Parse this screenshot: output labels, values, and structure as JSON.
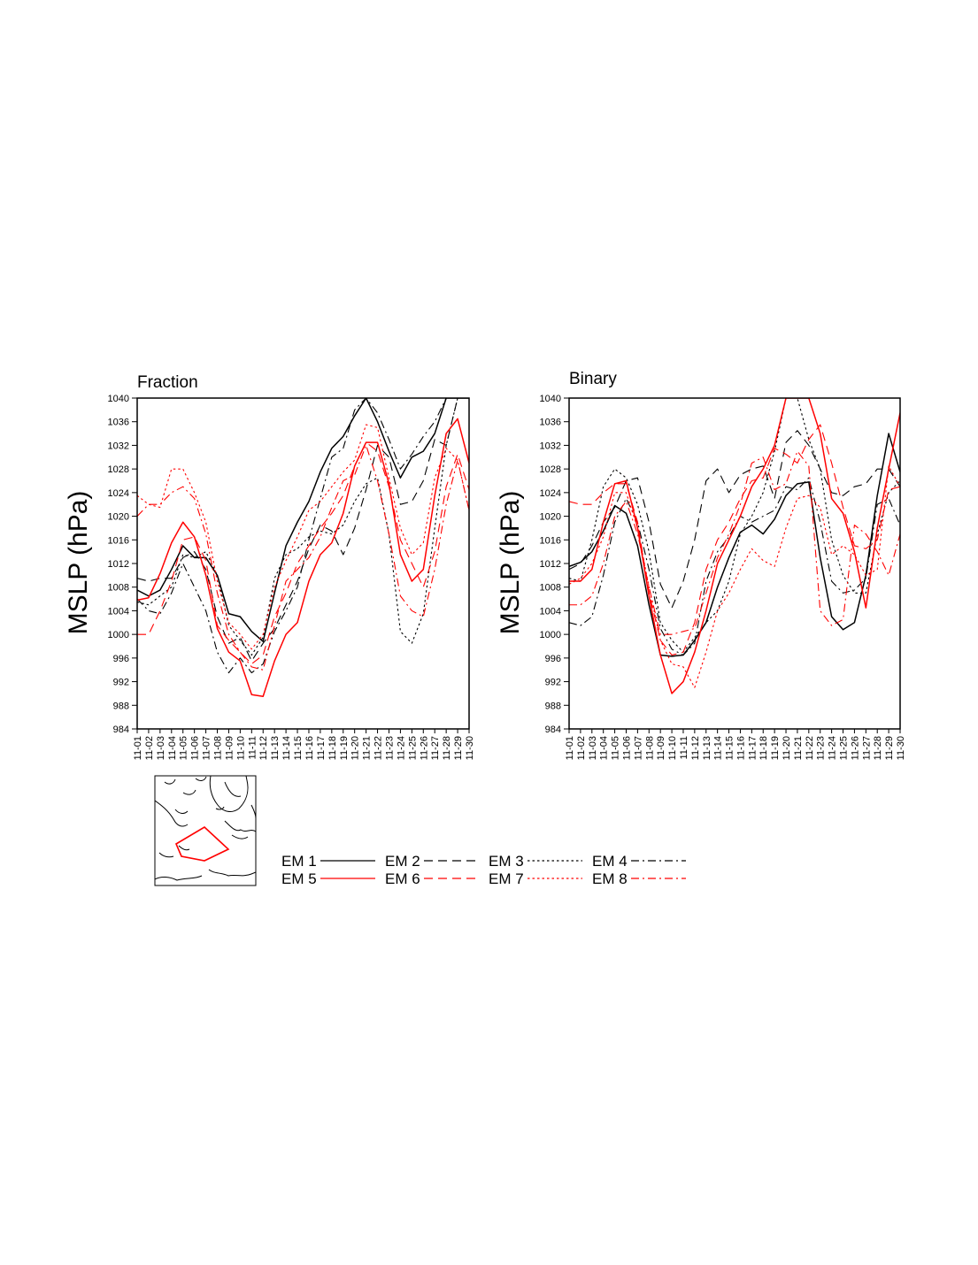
{
  "chart_data": [
    {
      "type": "line",
      "title": "Fraction",
      "ylabel": "MSLP (hPa)",
      "ylim": [
        984,
        1040
      ],
      "yticks": [
        984,
        988,
        992,
        996,
        1000,
        1004,
        1008,
        1012,
        1016,
        1020,
        1024,
        1028,
        1032,
        1036,
        1040
      ],
      "categories": [
        "11-01",
        "11-02",
        "11-03",
        "11-04",
        "11-05",
        "11-06",
        "11-07",
        "11-08",
        "11-09",
        "11-10",
        "11-11",
        "11-12",
        "11-13",
        "11-14",
        "11-15",
        "11-16",
        "11-17",
        "11-18",
        "11-19",
        "11-20",
        "11-21",
        "11-22",
        "11-23",
        "11-24",
        "11-25",
        "11-26",
        "11-27",
        "11-28",
        "11-29",
        "11-30"
      ],
      "grid": false,
      "series": [
        {
          "name": "EM 1",
          "values": [
            1007.5,
            1006.5,
            1007.5,
            1011,
            1015,
            1013,
            1013,
            1010,
            1003.5,
            1003,
            1000.5,
            998.8,
            1007,
            1015,
            1019,
            1022.5,
            1027.5,
            1031.5,
            1033.5,
            1037,
            1040,
            1036,
            1031,
            1026.5,
            1030,
            1031,
            1034,
            1040,
            1040,
            1040
          ]
        },
        {
          "name": "EM 2",
          "values": [
            1009.5,
            1009,
            1009.5,
            1009.5,
            1013,
            1014,
            1011,
            1003,
            998.5,
            999.5,
            995.5,
            998.5,
            1001,
            1005,
            1009,
            1014.5,
            1018.5,
            1017.5,
            1013.5,
            1018,
            1024.5,
            1032,
            1030,
            1022,
            1022.5,
            1026,
            1033,
            1032,
            1040,
            1040
          ]
        },
        {
          "name": "EM 3",
          "values": [
            1005.5,
            1005,
            1006.5,
            1008,
            1013.5,
            1013,
            1014,
            1010,
            1001.5,
            999,
            996.5,
            999.5,
            1009.5,
            1013.5,
            1014.5,
            1016.5,
            1017.5,
            1017,
            1018.5,
            1022.5,
            1025.5,
            1026.5,
            1017,
            1000.5,
            998.5,
            1003.5,
            1018,
            1032,
            1040,
            1040
          ]
        },
        {
          "name": "EM 4",
          "values": [
            1006,
            1004,
            1003.5,
            1007,
            1012,
            1008,
            1004,
            997,
            993.5,
            996,
            993.5,
            995,
            1000.5,
            1004,
            1008,
            1016,
            1023,
            1030,
            1031.5,
            1038,
            1040,
            1037.5,
            1033,
            1028,
            1030.5,
            1033.5,
            1036,
            1040,
            1040,
            1040
          ]
        },
        {
          "name": "EM 5",
          "values": [
            1005.8,
            1006.2,
            1010.3,
            1015.5,
            1019,
            1016.5,
            1010,
            1001,
            997,
            995.5,
            989.8,
            989.5,
            995.5,
            1000,
            1002,
            1009,
            1013.5,
            1015.5,
            1020.5,
            1028.5,
            1032.5,
            1032.5,
            1025.5,
            1013.5,
            1009,
            1011,
            1023.5,
            1034,
            1036.5,
            1029
          ]
        },
        {
          "name": "EM 6",
          "values": [
            1000,
            1000,
            1004,
            1009,
            1016,
            1016.5,
            1012.5,
            1001.5,
            999,
            997,
            995,
            996.5,
            1003,
            1007,
            1012,
            1015,
            1018,
            1020.5,
            1023.5,
            1028.5,
            1032.5,
            1031,
            1025,
            1016,
            1012,
            1008,
            1014,
            1025,
            1030.5,
            1024.5
          ]
        },
        {
          "name": "EM 7",
          "values": [
            1023.5,
            1022,
            1021.5,
            1028,
            1028,
            1024,
            1019,
            1009,
            1002,
            1000,
            997.5,
            1000,
            1008,
            1012.5,
            1016.5,
            1021,
            1022.5,
            1025,
            1027.5,
            1029.5,
            1035.5,
            1035,
            1026.5,
            1018,
            1013.5,
            1015.5,
            1026.5,
            1031.5,
            1029.5,
            1021
          ]
        },
        {
          "name": "EM 8",
          "values": [
            1020,
            1022,
            1022,
            1024,
            1025,
            1023,
            1017,
            1007,
            1000,
            997,
            994.5,
            994,
            1001.5,
            1009,
            1011,
            1013,
            1016.5,
            1021.5,
            1026,
            1027,
            1032,
            1026,
            1017,
            1006.5,
            1004,
            1003,
            1011,
            1022,
            1029.5,
            1021
          ]
        }
      ]
    },
    {
      "type": "line",
      "title": "Binary",
      "ylabel": "MSLP (hPa)",
      "ylim": [
        984,
        1040
      ],
      "yticks": [
        984,
        988,
        992,
        996,
        1000,
        1004,
        1008,
        1012,
        1016,
        1020,
        1024,
        1028,
        1032,
        1036,
        1040
      ],
      "categories": [
        "11-01",
        "11-02",
        "11-03",
        "11-04",
        "11-05",
        "11-06",
        "11-07",
        "11-08",
        "11-09",
        "11-10",
        "11-11",
        "11-12",
        "11-13",
        "11-14",
        "11-15",
        "11-16",
        "11-17",
        "11-18",
        "11-19",
        "11-20",
        "11-21",
        "11-22",
        "11-23",
        "11-24",
        "11-25",
        "11-26",
        "11-27",
        "11-28",
        "11-29",
        "11-30"
      ],
      "grid": false,
      "series": [
        {
          "name": "EM 1",
          "values": [
            1011.5,
            1012.2,
            1014,
            1017.5,
            1021.8,
            1020.5,
            1015,
            1005,
            996.5,
            996.3,
            996.5,
            999,
            1002,
            1008,
            1013,
            1017.3,
            1018.5,
            1017,
            1019.5,
            1023.5,
            1025.5,
            1025.8,
            1013,
            1003,
            1000.8,
            1002,
            1010,
            1023.5,
            1034,
            1027.5
          ]
        },
        {
          "name": "EM 2",
          "values": [
            1011,
            1012,
            1015,
            1019,
            1021.5,
            1026,
            1026.5,
            1019,
            1008.5,
            1004.5,
            1009,
            1016,
            1026,
            1028,
            1024,
            1027,
            1028,
            1028.5,
            1023,
            1032.5,
            1034.5,
            1032,
            1028,
            1024,
            1023.5,
            1025,
            1025.5,
            1028,
            1028,
            1025
          ]
        },
        {
          "name": "EM 3",
          "values": [
            1009.5,
            1009,
            1016,
            1025,
            1028,
            1026.5,
            1022,
            1014,
            1002,
            999,
            997,
            999.5,
            1002,
            1004,
            1009,
            1017,
            1020,
            1024,
            1031,
            1040,
            1040,
            1033,
            1028,
            1016,
            1010,
            1007,
            1007,
            1017,
            1024,
            1026
          ]
        },
        {
          "name": "EM 4",
          "values": [
            1002,
            1001.5,
            1003,
            1010,
            1019,
            1023,
            1019,
            1011,
            1001,
            997.5,
            996.5,
            998.5,
            1009,
            1014,
            1016.5,
            1020,
            1019,
            1020,
            1021,
            1025,
            1024.5,
            1026.5,
            1019,
            1009,
            1007,
            1007.5,
            1009.5,
            1022,
            1023,
            1018.5
          ]
        },
        {
          "name": "EM 5",
          "values": [
            1009,
            1009,
            1011,
            1019,
            1025.5,
            1026,
            1018,
            1006.5,
            996.5,
            990,
            992,
            997,
            1004,
            1012,
            1016,
            1020,
            1025,
            1028,
            1032,
            1040,
            1040,
            1040,
            1034,
            1023,
            1020.5,
            1014,
            1004.5,
            1018,
            1028,
            1037.5
          ]
        },
        {
          "name": "EM 6",
          "values": [
            1022.5,
            1022,
            1022,
            1024,
            1025.5,
            1025.5,
            1019,
            1007,
            999,
            996.5,
            997,
            1002,
            1011,
            1016,
            1019,
            1023,
            1026,
            1026.5,
            1031.5,
            1030.5,
            1029,
            1033,
            1035.5,
            1029,
            1021.5,
            1015,
            1014.5,
            1016,
            1024.5,
            1025
          ]
        },
        {
          "name": "EM 7",
          "values": [
            1008.5,
            1009.5,
            1012,
            1016.5,
            1024,
            1024,
            1018,
            1008,
            999,
            995,
            994.5,
            991,
            997,
            1004,
            1007,
            1011,
            1014.5,
            1012.5,
            1011.5,
            1018,
            1023,
            1023.5,
            1021.5,
            1013.5,
            1015,
            1013.5,
            1010,
            1011,
            1028.5,
            1025
          ]
        },
        {
          "name": "EM 8",
          "values": [
            1005,
            1005,
            1006.5,
            1012,
            1020,
            1022.5,
            1017,
            1008,
            1000,
            1000,
            1000.5,
            1001,
            1007,
            1013,
            1017,
            1022,
            1029,
            1030,
            1024.5,
            1025.5,
            1031,
            1028.5,
            1004,
            1001.5,
            1002.5,
            1018.5,
            1017,
            1014,
            1010,
            1017
          ]
        }
      ]
    }
  ],
  "legend": {
    "items": [
      {
        "label": "EM 1",
        "color": "#000000",
        "dash": "solid"
      },
      {
        "label": "EM 2",
        "color": "#000000",
        "dash": "long-dash"
      },
      {
        "label": "EM 3",
        "color": "#000000",
        "dash": "dotted"
      },
      {
        "label": "EM 4",
        "color": "#000000",
        "dash": "dash-dot"
      },
      {
        "label": "EM 5",
        "color": "#ff0000",
        "dash": "solid"
      },
      {
        "label": "EM 6",
        "color": "#ff0000",
        "dash": "long-dash"
      },
      {
        "label": "EM 7",
        "color": "#ff0000",
        "dash": "dotted"
      },
      {
        "label": "EM 8",
        "color": "#ff0000",
        "dash": "dash-dot"
      }
    ]
  },
  "inset_map": {
    "region_color": "#ff0000"
  }
}
